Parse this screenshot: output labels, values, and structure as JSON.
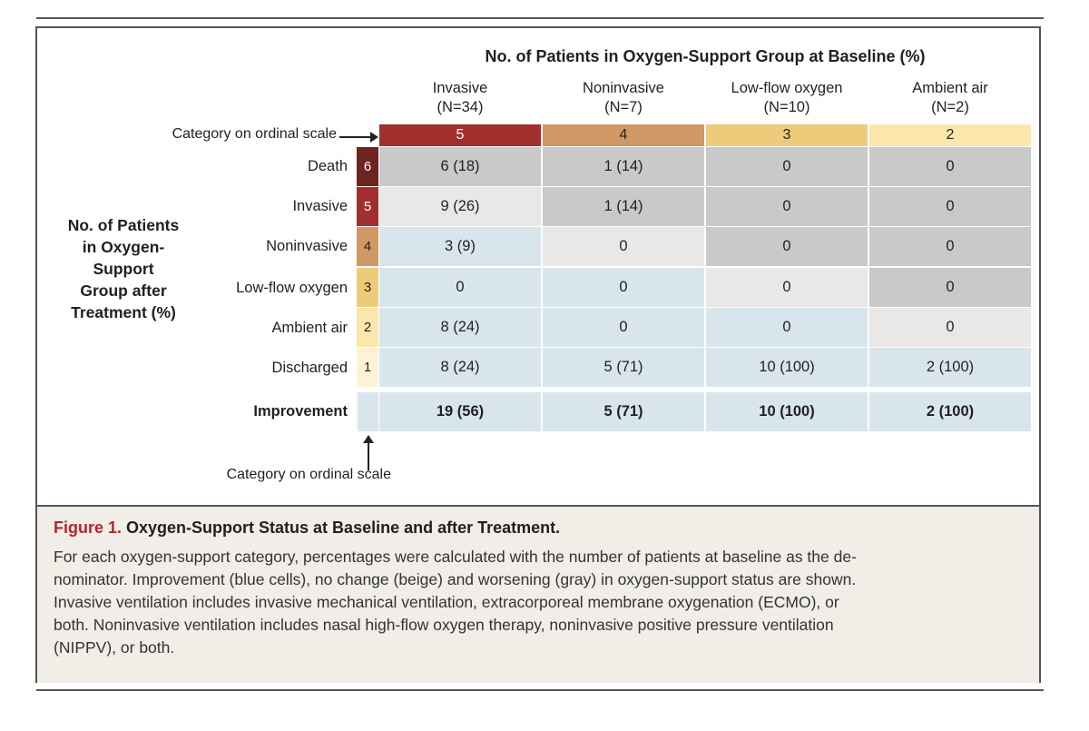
{
  "figure": {
    "main_title": "No. of Patients in Oxygen-Support Group at Baseline (%)",
    "side_title_lines": [
      "No. of Patients",
      "in Oxygen-Support",
      "Group after",
      "Treatment (%)"
    ],
    "ordinal_top_label": "Category on ordinal scale",
    "ordinal_bottom_label": "Category on ordinal scale",
    "columns": [
      {
        "name": "Invasive",
        "n": "(N=34)",
        "category": "5"
      },
      {
        "name": "Noninvasive",
        "n": "(N=7)",
        "category": "4"
      },
      {
        "name": "Low-flow oxygen",
        "n": "(N=10)",
        "category": "3"
      },
      {
        "name": "Ambient air",
        "n": "(N=2)",
        "category": "2"
      }
    ],
    "rows": [
      {
        "label": "Death",
        "category": "6",
        "cells": [
          "6 (18)",
          "1 (14)",
          "0",
          "0"
        ]
      },
      {
        "label": "Invasive",
        "category": "5",
        "cells": [
          "9 (26)",
          "1 (14)",
          "0",
          "0"
        ]
      },
      {
        "label": "Noninvasive",
        "category": "4",
        "cells": [
          "3 (9)",
          "0",
          "0",
          "0"
        ]
      },
      {
        "label": "Low-flow oxygen",
        "category": "3",
        "cells": [
          "0",
          "0",
          "0",
          "0"
        ]
      },
      {
        "label": "Ambient air",
        "category": "2",
        "cells": [
          "8 (24)",
          "0",
          "0",
          "0"
        ]
      },
      {
        "label": "Discharged",
        "category": "1",
        "cells": [
          "8 (24)",
          "5 (71)",
          "10 (100)",
          "2 (100)"
        ]
      }
    ],
    "improvement": {
      "label": "Improvement",
      "cells": [
        "19 (56)",
        "5 (71)",
        "10 (100)",
        "2 (100)"
      ]
    },
    "colors": {
      "improvement": "#d9e5ec",
      "no_change": "#e9e8e6",
      "worsening": "#c9c9c9",
      "cat6": "#6b2420",
      "cat5": "#a12f2c",
      "cat4": "#cf9865",
      "cat3": "#eecb7b",
      "cat2": "#fbe6ac",
      "cat1": "#fdf2d6"
    }
  },
  "caption": {
    "figure_number": "Figure 1.",
    "title": "Oxygen-Support Status at Baseline and after Treatment.",
    "lines": [
      "For each oxygen-support category, percentages were calculated with the number of patients at baseline as the de-",
      "nominator. Improvement (blue cells), no change (beige) and worsening (gray) in oxygen-support status are shown.",
      "Invasive ventilation includes invasive mechanical ventilation, extracorporeal membrane oxygenation (ECMO), or",
      "both. Noninvasive ventilation includes nasal high-flow oxygen therapy, noninvasive positive pressure ventilation",
      "(NIPPV), or both."
    ]
  }
}
